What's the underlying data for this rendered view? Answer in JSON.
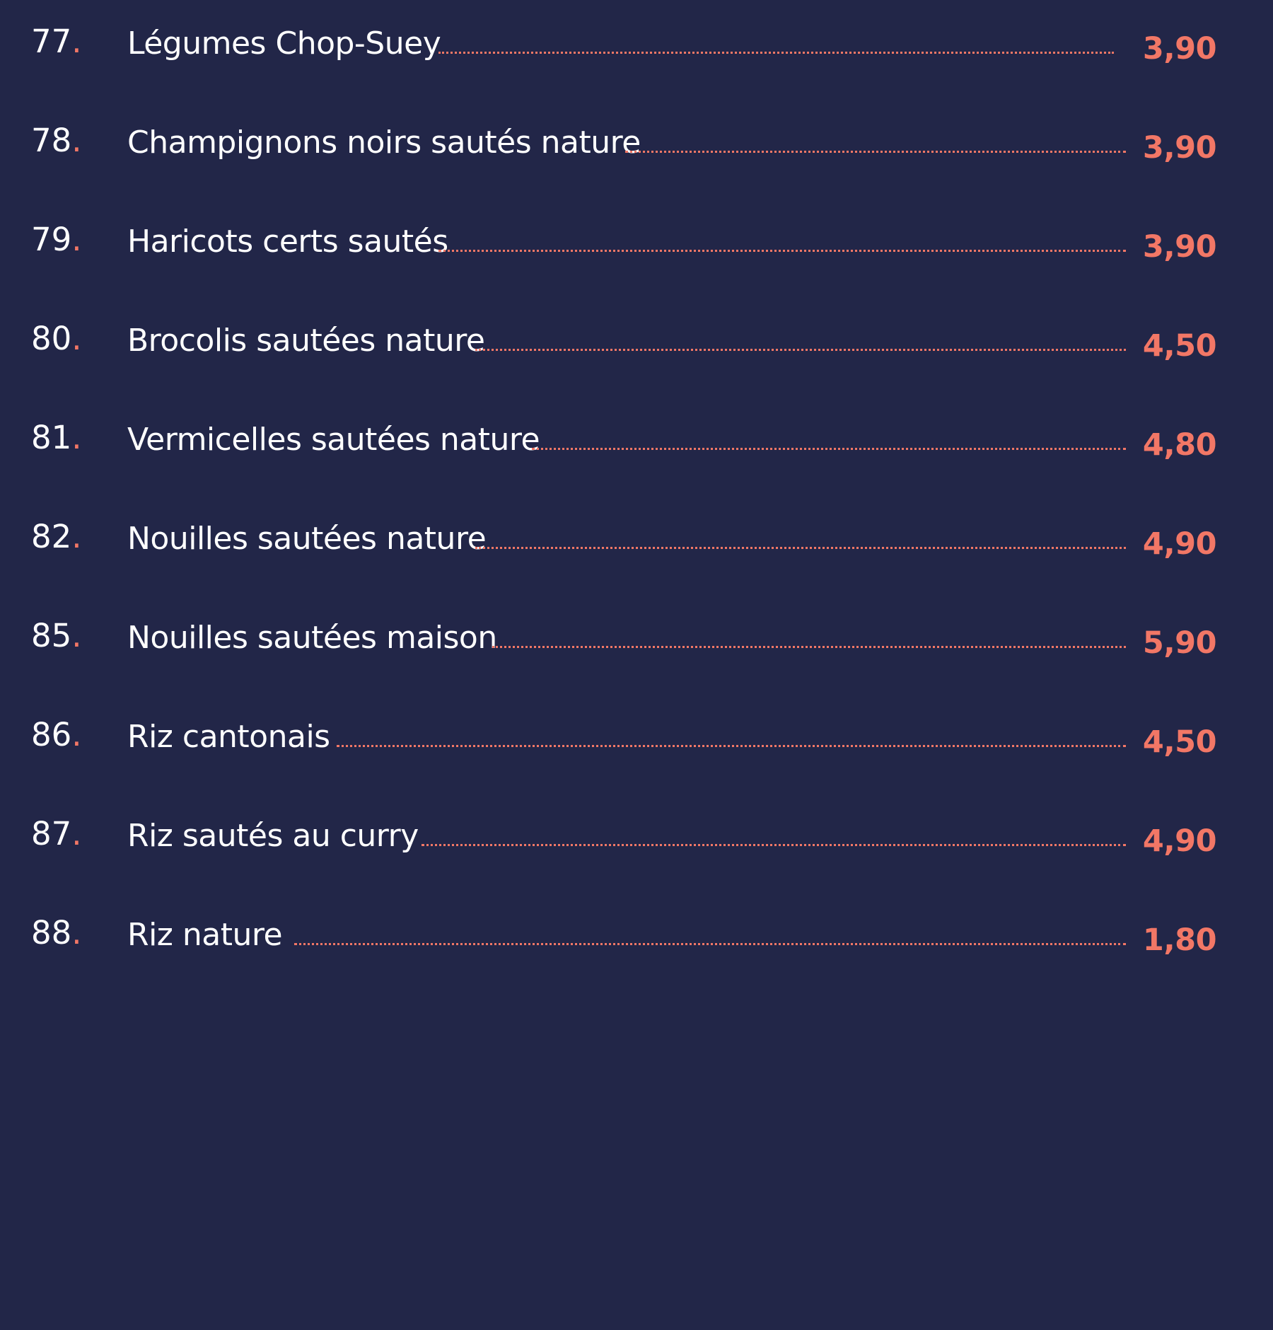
{
  "menu": {
    "items": [
      {
        "number": "77",
        "name": "Légumes Chop-Suey",
        "price": "3,90"
      },
      {
        "number": "78",
        "name": "Champignons noirs sautés nature",
        "price": "3,90"
      },
      {
        "number": "79",
        "name": "Haricots certs sautés",
        "price": "3,90"
      },
      {
        "number": "80",
        "name": "Brocolis sautées nature",
        "price": "4,50"
      },
      {
        "number": "81",
        "name": "Vermicelles sautées nature",
        "price": "4,80"
      },
      {
        "number": "82",
        "name": "Nouilles sautées nature",
        "price": "4,90"
      },
      {
        "number": "85",
        "name": "Nouilles sautées maison",
        "price": "5,90"
      },
      {
        "number": "86",
        "name": "Riz cantonais",
        "price": "4,50"
      },
      {
        "number": "87",
        "name": "Riz sautés au curry",
        "price": "4,90"
      },
      {
        "number": "88",
        "name": "Riz nature",
        "price": "1,80"
      }
    ]
  },
  "colors": {
    "background": "#222648",
    "text": "#ffffff",
    "accent": "#f27766"
  }
}
